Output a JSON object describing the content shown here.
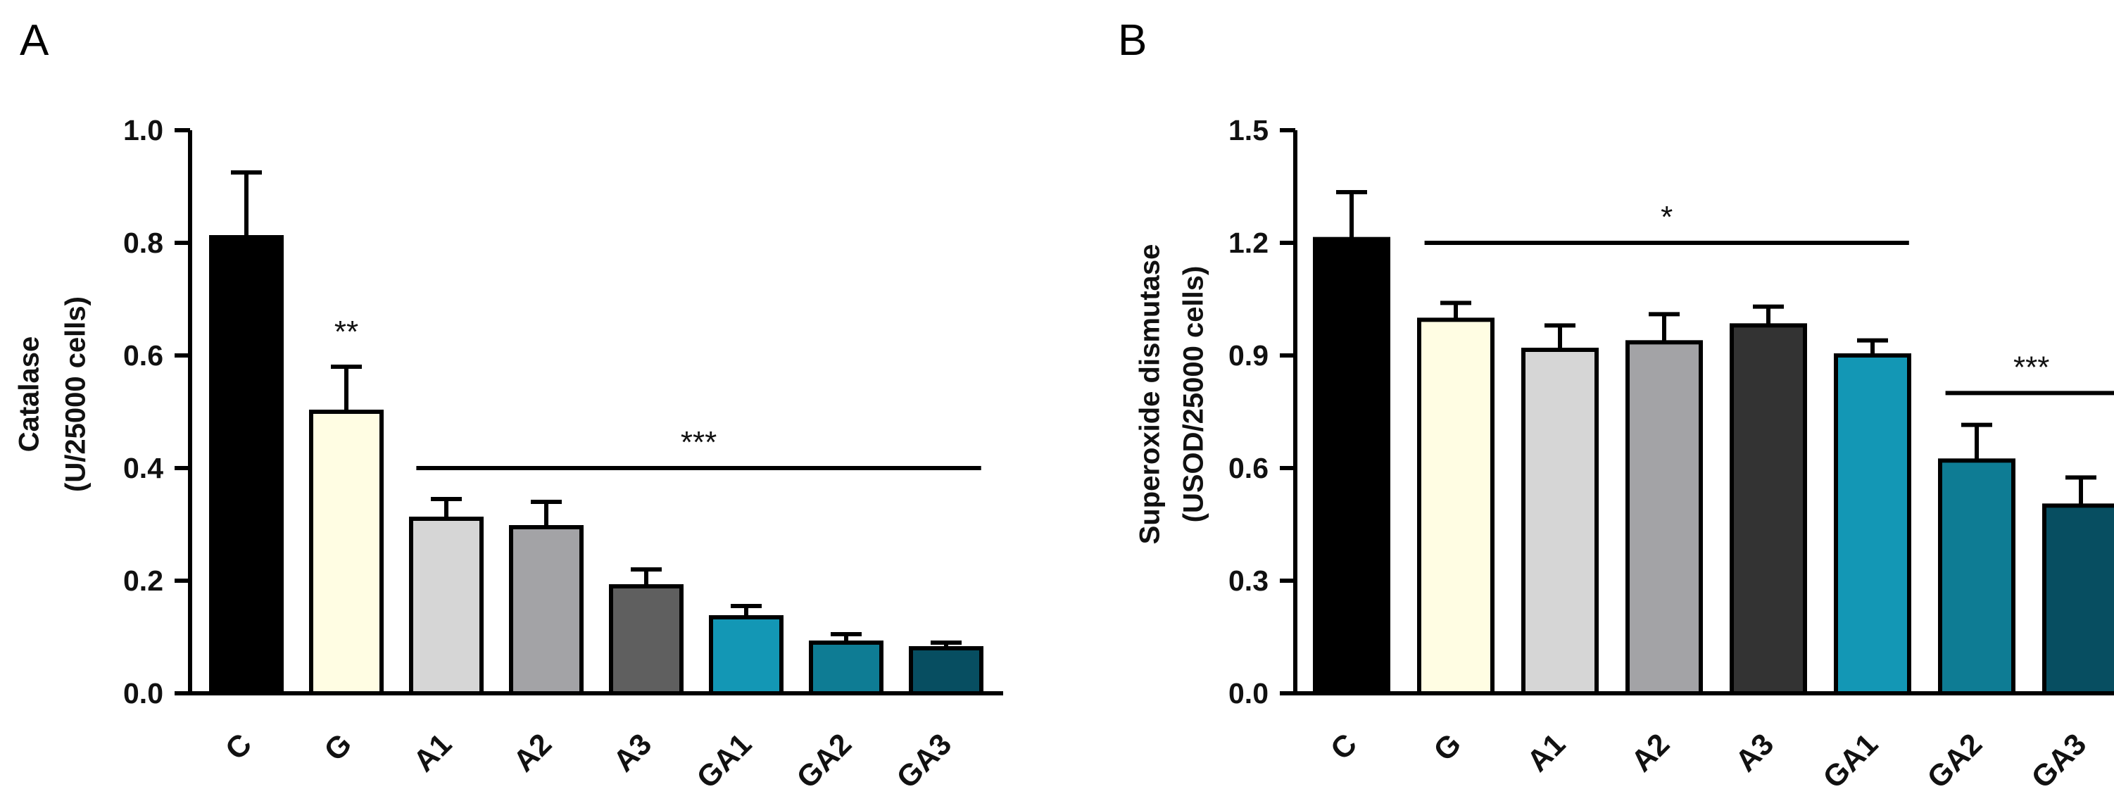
{
  "chart_data": [
    {
      "panel": "A",
      "type": "bar",
      "ylabel_lines": [
        "Catalase",
        "(U/25000 cells)"
      ],
      "ylim": [
        0,
        1.0
      ],
      "yticks": [
        "0.0",
        "0.2",
        "0.4",
        "0.6",
        "0.8",
        "1.0"
      ],
      "ytick_values": [
        0,
        0.2,
        0.4,
        0.6,
        0.8,
        1.0
      ],
      "categories": [
        "C",
        "G",
        "A1",
        "A2",
        "A3",
        "GA1",
        "GA2",
        "GA3"
      ],
      "values": [
        0.81,
        0.5,
        0.31,
        0.295,
        0.19,
        0.135,
        0.09,
        0.08
      ],
      "errors": [
        0.115,
        0.08,
        0.035,
        0.045,
        0.03,
        0.02,
        0.015,
        0.01
      ],
      "colors": [
        "#000000",
        "#FFFDE3",
        "#D6D6D6",
        "#A3A3A6",
        "#5F5F5F",
        "#1397B5",
        "#0E7C94",
        "#074E61"
      ],
      "annotations": [
        {
          "text": "**",
          "category": "G",
          "type": "above_bar"
        },
        {
          "text": "***",
          "from": "A1",
          "to": "GA3",
          "y": 0.4,
          "type": "line"
        }
      ]
    },
    {
      "panel": "B",
      "type": "bar",
      "ylabel_lines": [
        "Superoxide dismutase",
        "(USOD/25000 cells)"
      ],
      "ylim": [
        0,
        1.5
      ],
      "yticks": [
        "0.0",
        "0.3",
        "0.6",
        "0.9",
        "1.2",
        "1.5"
      ],
      "ytick_values": [
        0,
        0.3,
        0.6,
        0.9,
        1.2,
        1.5
      ],
      "categories": [
        "C",
        "G",
        "A1",
        "A2",
        "A3",
        "GA1",
        "GA2",
        "GA3"
      ],
      "values": [
        1.21,
        0.995,
        0.915,
        0.935,
        0.98,
        0.9,
        0.62,
        0.5
      ],
      "errors": [
        0.125,
        0.045,
        0.065,
        0.075,
        0.05,
        0.04,
        0.095,
        0.075
      ],
      "colors": [
        "#000000",
        "#FFFDE3",
        "#D6D6D6",
        "#A3A3A6",
        "#333333",
        "#1397B5",
        "#0E7C94",
        "#074E61"
      ],
      "annotations": [
        {
          "text": "*",
          "from": "G",
          "to": "GA1",
          "y": 1.2,
          "type": "line"
        },
        {
          "text": "***",
          "from": "GA2",
          "to": "GA3",
          "y": 0.8,
          "type": "line"
        }
      ]
    }
  ]
}
